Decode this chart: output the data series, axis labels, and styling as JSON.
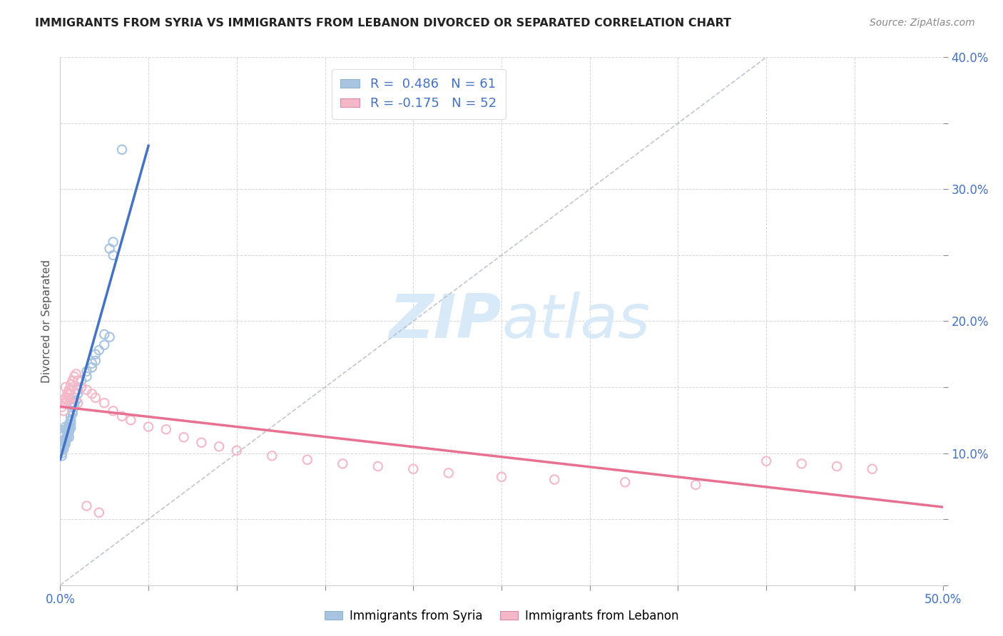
{
  "title": "IMMIGRANTS FROM SYRIA VS IMMIGRANTS FROM LEBANON DIVORCED OR SEPARATED CORRELATION CHART",
  "source": "Source: ZipAtlas.com",
  "ylabel": "Divorced or Separated",
  "xlim": [
    0,
    0.5
  ],
  "ylim": [
    0,
    0.4
  ],
  "xtick_positions": [
    0.0,
    0.05,
    0.1,
    0.15,
    0.2,
    0.25,
    0.3,
    0.35,
    0.4,
    0.45,
    0.5
  ],
  "ytick_positions": [
    0.0,
    0.05,
    0.1,
    0.15,
    0.2,
    0.25,
    0.3,
    0.35,
    0.4
  ],
  "color_syria": "#a8c4e0",
  "color_lebanon": "#f4b8c8",
  "edge_syria": "#7aaed6",
  "edge_lebanon": "#e898b0",
  "line_color_syria": "#4472c4",
  "line_color_lebanon": "#e87090",
  "watermark_color": "#d8eaf8",
  "background_color": "#ffffff",
  "grid_color": "#cccccc",
  "title_color": "#222222",
  "axis_label_color": "#4472c4",
  "axis_tick_color": "#4472c4",
  "syria_x": [
    0.002,
    0.003,
    0.001,
    0.004,
    0.002,
    0.005,
    0.003,
    0.001,
    0.006,
    0.002,
    0.004,
    0.003,
    0.002,
    0.005,
    0.001,
    0.003,
    0.004,
    0.002,
    0.006,
    0.003,
    0.005,
    0.002,
    0.004,
    0.003,
    0.001,
    0.006,
    0.004,
    0.002,
    0.005,
    0.003,
    0.001,
    0.004,
    0.002,
    0.006,
    0.003,
    0.007,
    0.005,
    0.008,
    0.004,
    0.009,
    0.006,
    0.01,
    0.007,
    0.012,
    0.008,
    0.015,
    0.01,
    0.018,
    0.012,
    0.02,
    0.015,
    0.022,
    0.018,
    0.025,
    0.02,
    0.028,
    0.03,
    0.035,
    0.028,
    0.025,
    0.03
  ],
  "syria_y": [
    0.11,
    0.12,
    0.105,
    0.115,
    0.108,
    0.112,
    0.118,
    0.102,
    0.125,
    0.109,
    0.115,
    0.107,
    0.113,
    0.12,
    0.104,
    0.111,
    0.117,
    0.106,
    0.122,
    0.108,
    0.116,
    0.103,
    0.114,
    0.11,
    0.1,
    0.119,
    0.113,
    0.105,
    0.118,
    0.109,
    0.098,
    0.112,
    0.106,
    0.124,
    0.11,
    0.13,
    0.122,
    0.135,
    0.118,
    0.14,
    0.128,
    0.145,
    0.132,
    0.15,
    0.138,
    0.158,
    0.148,
    0.165,
    0.155,
    0.17,
    0.162,
    0.178,
    0.168,
    0.182,
    0.175,
    0.188,
    0.26,
    0.33,
    0.255,
    0.19,
    0.25
  ],
  "lebanon_x": [
    0.002,
    0.003,
    0.001,
    0.004,
    0.002,
    0.005,
    0.003,
    0.006,
    0.004,
    0.002,
    0.007,
    0.005,
    0.003,
    0.008,
    0.006,
    0.004,
    0.009,
    0.007,
    0.005,
    0.01,
    0.012,
    0.008,
    0.015,
    0.01,
    0.018,
    0.02,
    0.025,
    0.03,
    0.035,
    0.04,
    0.05,
    0.06,
    0.07,
    0.08,
    0.09,
    0.1,
    0.12,
    0.14,
    0.16,
    0.18,
    0.2,
    0.22,
    0.25,
    0.28,
    0.32,
    0.36,
    0.4,
    0.42,
    0.44,
    0.46,
    0.015,
    0.022
  ],
  "lebanon_y": [
    0.14,
    0.15,
    0.135,
    0.145,
    0.138,
    0.148,
    0.142,
    0.152,
    0.14,
    0.132,
    0.155,
    0.145,
    0.138,
    0.158,
    0.148,
    0.14,
    0.16,
    0.15,
    0.142,
    0.155,
    0.15,
    0.142,
    0.148,
    0.138,
    0.145,
    0.142,
    0.138,
    0.132,
    0.128,
    0.125,
    0.12,
    0.118,
    0.112,
    0.108,
    0.105,
    0.102,
    0.098,
    0.095,
    0.092,
    0.09,
    0.088,
    0.085,
    0.082,
    0.08,
    0.078,
    0.076,
    0.094,
    0.092,
    0.09,
    0.088,
    0.06,
    0.055
  ]
}
